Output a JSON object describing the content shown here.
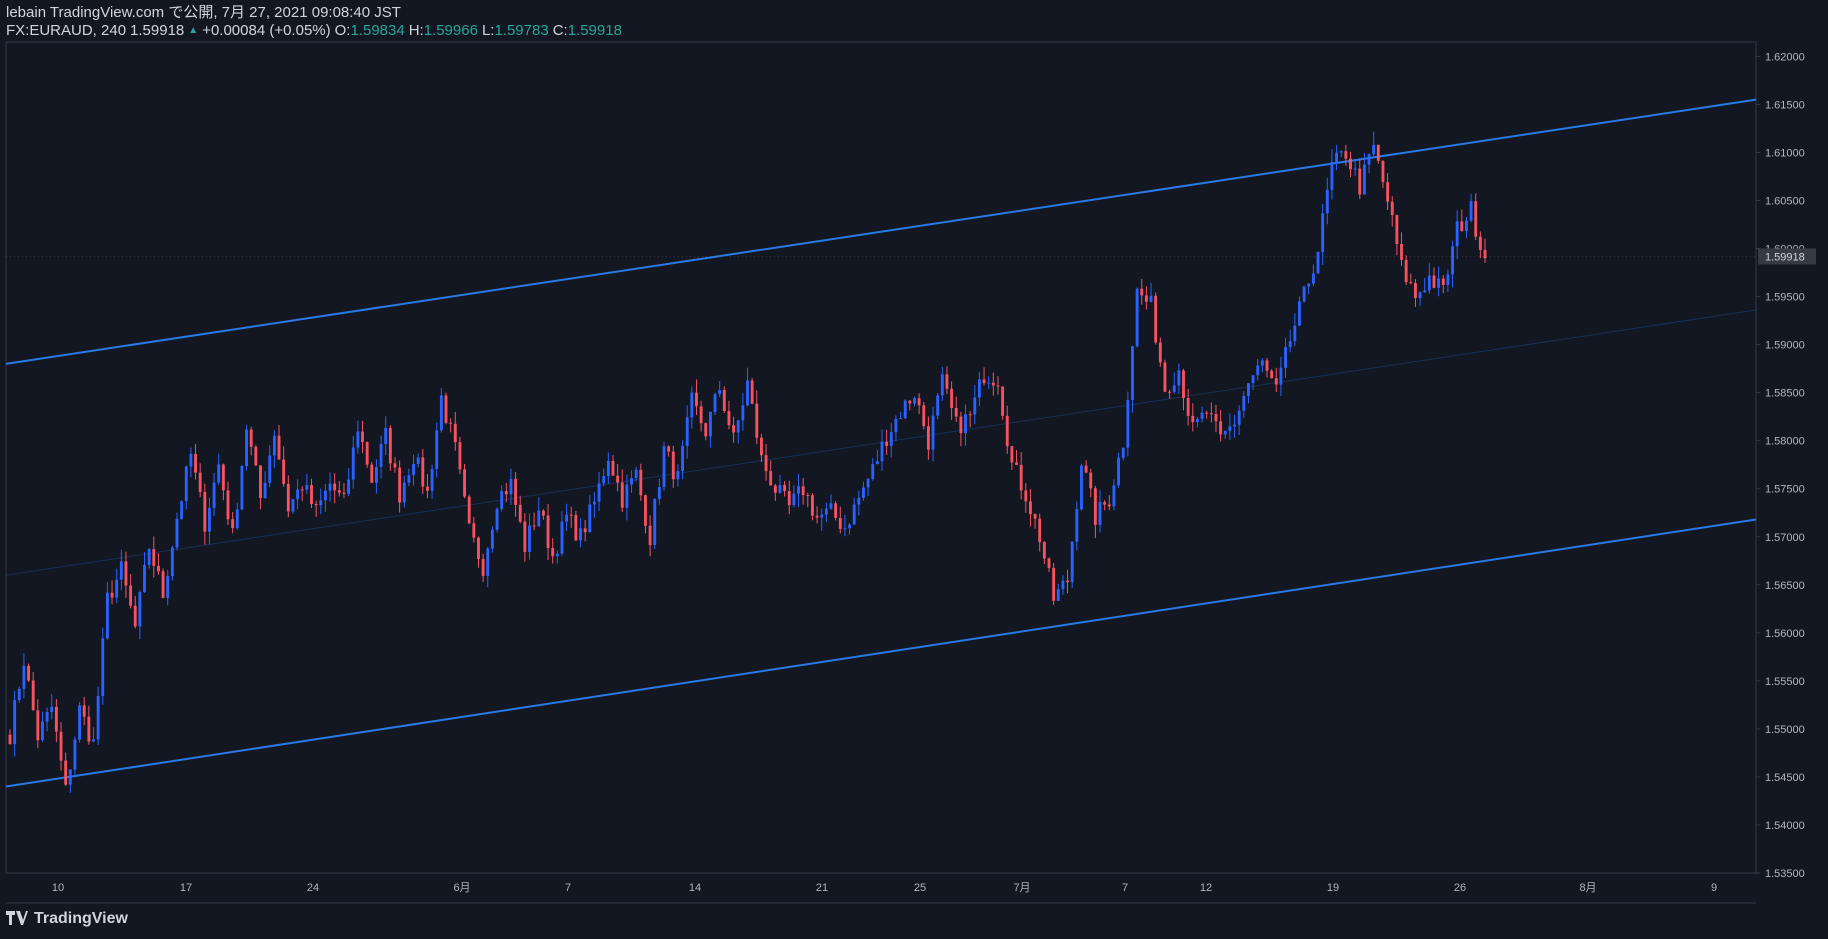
{
  "header": {
    "publisher_line": "lebain TradingView.com で公開, 7月 27, 2021 09:08:40 JST",
    "symbol": "FX:EURAUD, 240",
    "last": "1.59918",
    "change": "+0.00084 (+0.05%)",
    "o_label": "O:",
    "o_value": "1.59834",
    "h_label": "H:",
    "h_value": "1.59966",
    "l_label": "L:",
    "l_value": "1.59783",
    "c_label": "C:",
    "c_value": "1.59918"
  },
  "footer": {
    "brand": "TradingView",
    "logo_icon": "tradingview-logo-icon"
  },
  "colors": {
    "bg": "#131722",
    "up": "#2962ff",
    "down": "#f7525f",
    "channel": "#2979e6",
    "grid": "#2a2e39",
    "text": "#d1d4dc"
  },
  "chart_data": {
    "type": "candlestick",
    "symbol": "FX:EURAUD",
    "interval": "240",
    "last_price": "1.59918",
    "ylim": [
      1.535,
      1.6215
    ],
    "y_ticks": [
      "1.62000",
      "1.61500",
      "1.61000",
      "1.60500",
      "1.60000",
      "1.59500",
      "1.59000",
      "1.58500",
      "1.58000",
      "1.57500",
      "1.57000",
      "1.56500",
      "1.56000",
      "1.55500",
      "1.55000",
      "1.54500",
      "1.54000",
      "1.53500"
    ],
    "x_ticks": [
      "10",
      "17",
      "24",
      "6月",
      "7",
      "14",
      "21",
      "25",
      "7月",
      "7",
      "12",
      "19",
      "26",
      "8月",
      "9"
    ],
    "anchors": [
      1.5495,
      1.5572,
      1.5492,
      1.5522,
      1.5435,
      1.552,
      1.5485,
      1.5635,
      1.5665,
      1.5605,
      1.569,
      1.564,
      1.572,
      1.5785,
      1.5715,
      1.5775,
      1.57,
      1.5815,
      1.574,
      1.581,
      1.573,
      1.5755,
      1.5725,
      1.5755,
      1.5735,
      1.5815,
      1.576,
      1.5805,
      1.5745,
      1.5785,
      1.5745,
      1.5845,
      1.579,
      1.5705,
      1.567,
      1.574,
      1.5755,
      1.569,
      1.573,
      1.568,
      1.572,
      1.57,
      1.5735,
      1.5785,
      1.574,
      1.5765,
      1.57,
      1.579,
      1.576,
      1.584,
      1.581,
      1.5855,
      1.58,
      1.586,
      1.578,
      1.575,
      1.573,
      1.575,
      1.572,
      1.5725,
      1.571,
      1.574,
      1.577,
      1.5805,
      1.583,
      1.585,
      1.58,
      1.586,
      1.5815,
      1.5825,
      1.587,
      1.5865,
      1.5775,
      1.5745,
      1.57,
      1.5635,
      1.5655,
      1.578,
      1.572,
      1.574,
      1.58,
      1.5955,
      1.594,
      1.5855,
      1.5875,
      1.581,
      1.583,
      1.58,
      1.582,
      1.586,
      1.588,
      1.585,
      1.5905,
      1.595,
      1.6,
      1.6085,
      1.61,
      1.6065,
      1.6105,
      1.605,
      1.598,
      1.595,
      1.597,
      1.5955,
      1.602,
      1.604,
      1.599
    ],
    "channel": {
      "upper": [
        [
          0,
          1.588
        ],
        [
          1,
          1.6155
        ]
      ],
      "lower": [
        [
          0,
          1.544
        ],
        [
          1,
          1.5718
        ]
      ],
      "mid": [
        [
          0,
          1.566
        ],
        [
          1,
          1.5936
        ]
      ]
    },
    "grid": false
  }
}
